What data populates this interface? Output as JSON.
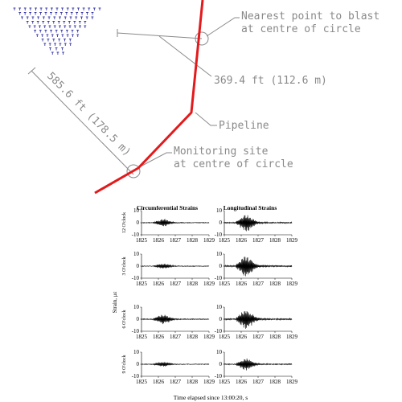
{
  "map": {
    "labels": {
      "nearest_point": [
        "Nearest point to blast",
        "at centre of circle"
      ],
      "distance_1": "369.4 ft (112.6 m)",
      "pipeline": "Pipeline",
      "monitoring_site": [
        "Monitoring site",
        "at centre of circle"
      ],
      "distance_2": "585.6 ft (178.5 m)"
    },
    "colors": {
      "pipeline": "#e31a1c",
      "annotation": "#8a8a8a",
      "blast_holes": "#3a3aa8"
    }
  },
  "chart_data": {
    "type": "line",
    "columns": [
      "Circumferential Strains",
      "Longitudinal Strains"
    ],
    "rows": [
      "12 O'clock",
      "3 O'clock",
      "6 O'clock",
      "9 O'clock"
    ],
    "ylabel": "Strain, με",
    "xlabel": "Time elapsed since 13:00:20, s",
    "x_ticks": [
      "1825",
      "1826",
      "1827",
      "1828",
      "1829"
    ],
    "y_ticks": [
      "10",
      "0",
      "-10"
    ],
    "xlim": [
      1825,
      1829
    ],
    "ylim": [
      -10,
      10
    ],
    "event_window": [
      1825.7,
      1827.7
    ],
    "peak_amplitude": [
      [
        3,
        7
      ],
      [
        2,
        9
      ],
      [
        4,
        8
      ],
      [
        2,
        5
      ]
    ]
  }
}
